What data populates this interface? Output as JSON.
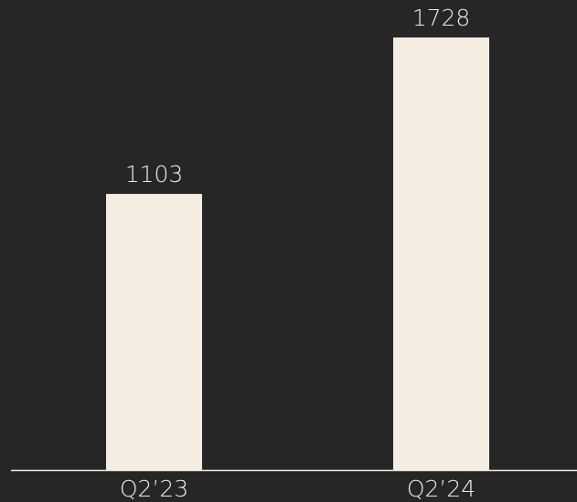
{
  "chart_data": {
    "type": "bar",
    "categories": [
      "Q2’23",
      "Q2’24"
    ],
    "values": [
      1103,
      1728
    ],
    "color": "#f5ede1"
  }
}
